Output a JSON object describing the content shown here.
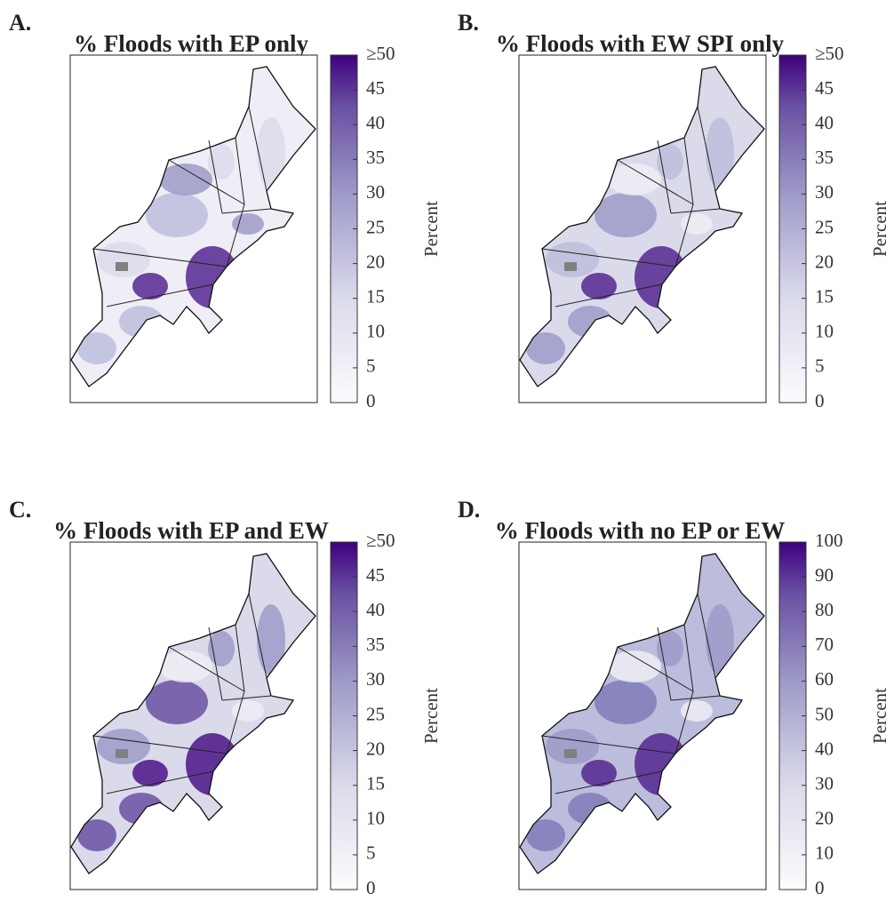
{
  "panels": [
    {
      "letter": "A.",
      "title": "% Floods with EP only",
      "colorbar": {
        "label": "Percent",
        "lim": [
          0,
          50
        ],
        "ticks": [
          0,
          5,
          10,
          15,
          20,
          25,
          30,
          35,
          40,
          45,
          {
            "value": 50,
            "label": "≥50"
          }
        ]
      }
    },
    {
      "letter": "B.",
      "title": "% Floods with EW SPI only",
      "colorbar": {
        "label": "Percent",
        "lim": [
          0,
          50
        ],
        "ticks": [
          0,
          5,
          10,
          15,
          20,
          25,
          30,
          35,
          40,
          45,
          {
            "value": 50,
            "label": "≥50"
          }
        ]
      }
    },
    {
      "letter": "C.",
      "title": "% Floods with EP and EW",
      "colorbar": {
        "label": "Percent",
        "lim": [
          0,
          50
        ],
        "ticks": [
          0,
          5,
          10,
          15,
          20,
          25,
          30,
          35,
          40,
          45,
          {
            "value": 50,
            "label": "≥50"
          }
        ]
      }
    },
    {
      "letter": "D.",
      "title": "% Floods with no EP or EW",
      "colorbar": {
        "label": "Percent",
        "lim": [
          0,
          100
        ],
        "ticks": [
          0,
          10,
          20,
          30,
          40,
          50,
          60,
          70,
          80,
          90,
          100
        ]
      }
    }
  ]
}
